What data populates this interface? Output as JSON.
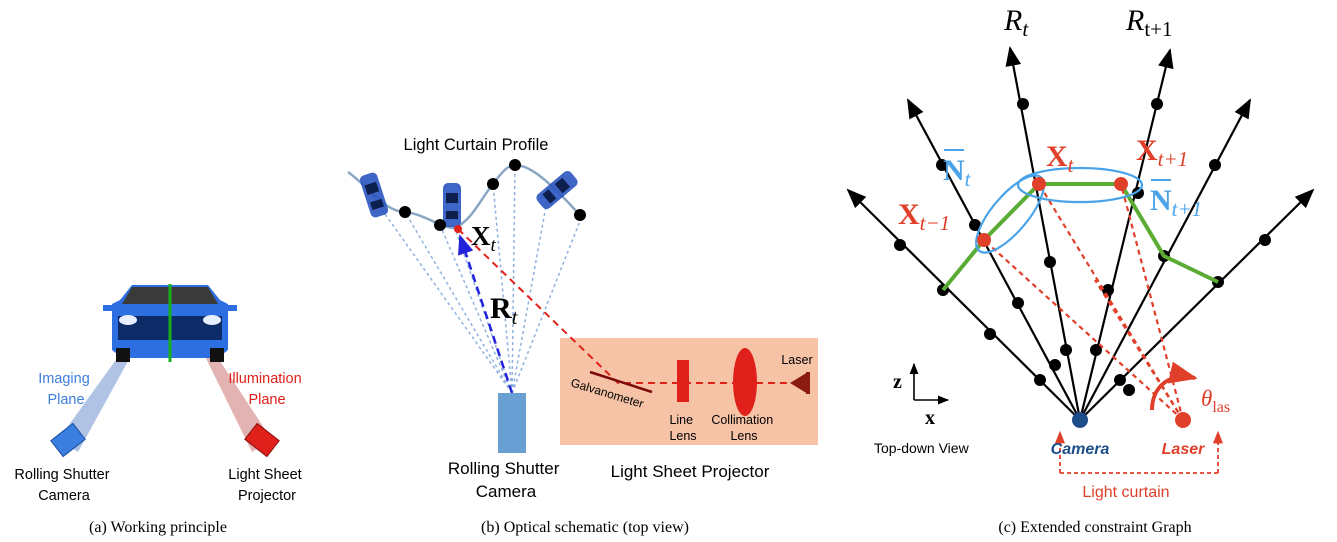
{
  "panel_a": {
    "imaging_plane": [
      "Imaging",
      "Plane"
    ],
    "illumination_plane": [
      "Illumination",
      "Plane"
    ],
    "camera": [
      "Rolling Shutter",
      "Camera"
    ],
    "projector": [
      "Light Sheet",
      "Projector"
    ],
    "caption": "(a) Working principle",
    "colors": {
      "imaging": "#3f7fdc",
      "illumination": "#e0201b"
    }
  },
  "panel_b": {
    "profile_label": "Light Curtain Profile",
    "point_label": "X",
    "point_sub": "t",
    "ray_label": "R",
    "ray_sub": "t",
    "galvanometer": "Galvanometer",
    "line_lens": [
      "Line",
      "Lens"
    ],
    "collimation_lens": [
      "Collimation",
      "Lens"
    ],
    "laser": "Laser",
    "camera": [
      "Rolling Shutter",
      "Camera"
    ],
    "projector": "Light Sheet Projector",
    "caption": "(b) Optical schematic (top view)",
    "colors": {
      "projector_box": "#f6c3a6",
      "ray": "#2222dd",
      "laser_path": "#e0201b"
    }
  },
  "panel_c": {
    "ray_t": "R",
    "ray_t_sub": "t",
    "ray_t1": "R",
    "ray_t1_sub": "t+1",
    "x_t": "X",
    "x_t_sub": "t",
    "x_t1": "X",
    "x_t1_sub": "t+1",
    "x_tm1": "X",
    "x_tm1_sub": "t−1",
    "n_t": "N",
    "n_t_sub": "t",
    "n_t1": "N",
    "n_t1_sub": "t+1",
    "axis_z": "z",
    "axis_x": "x",
    "view": "Top-down View",
    "camera": "Camera",
    "laser": "Laser",
    "theta": "θ",
    "theta_sub": "las",
    "light_curtain": "Light curtain",
    "caption": "(c) Extended constraint Graph",
    "colors": {
      "red": "#e0402a",
      "blue": "#4aa3e8",
      "green": "#5aac34",
      "camera_node": "#1d4e89"
    }
  }
}
